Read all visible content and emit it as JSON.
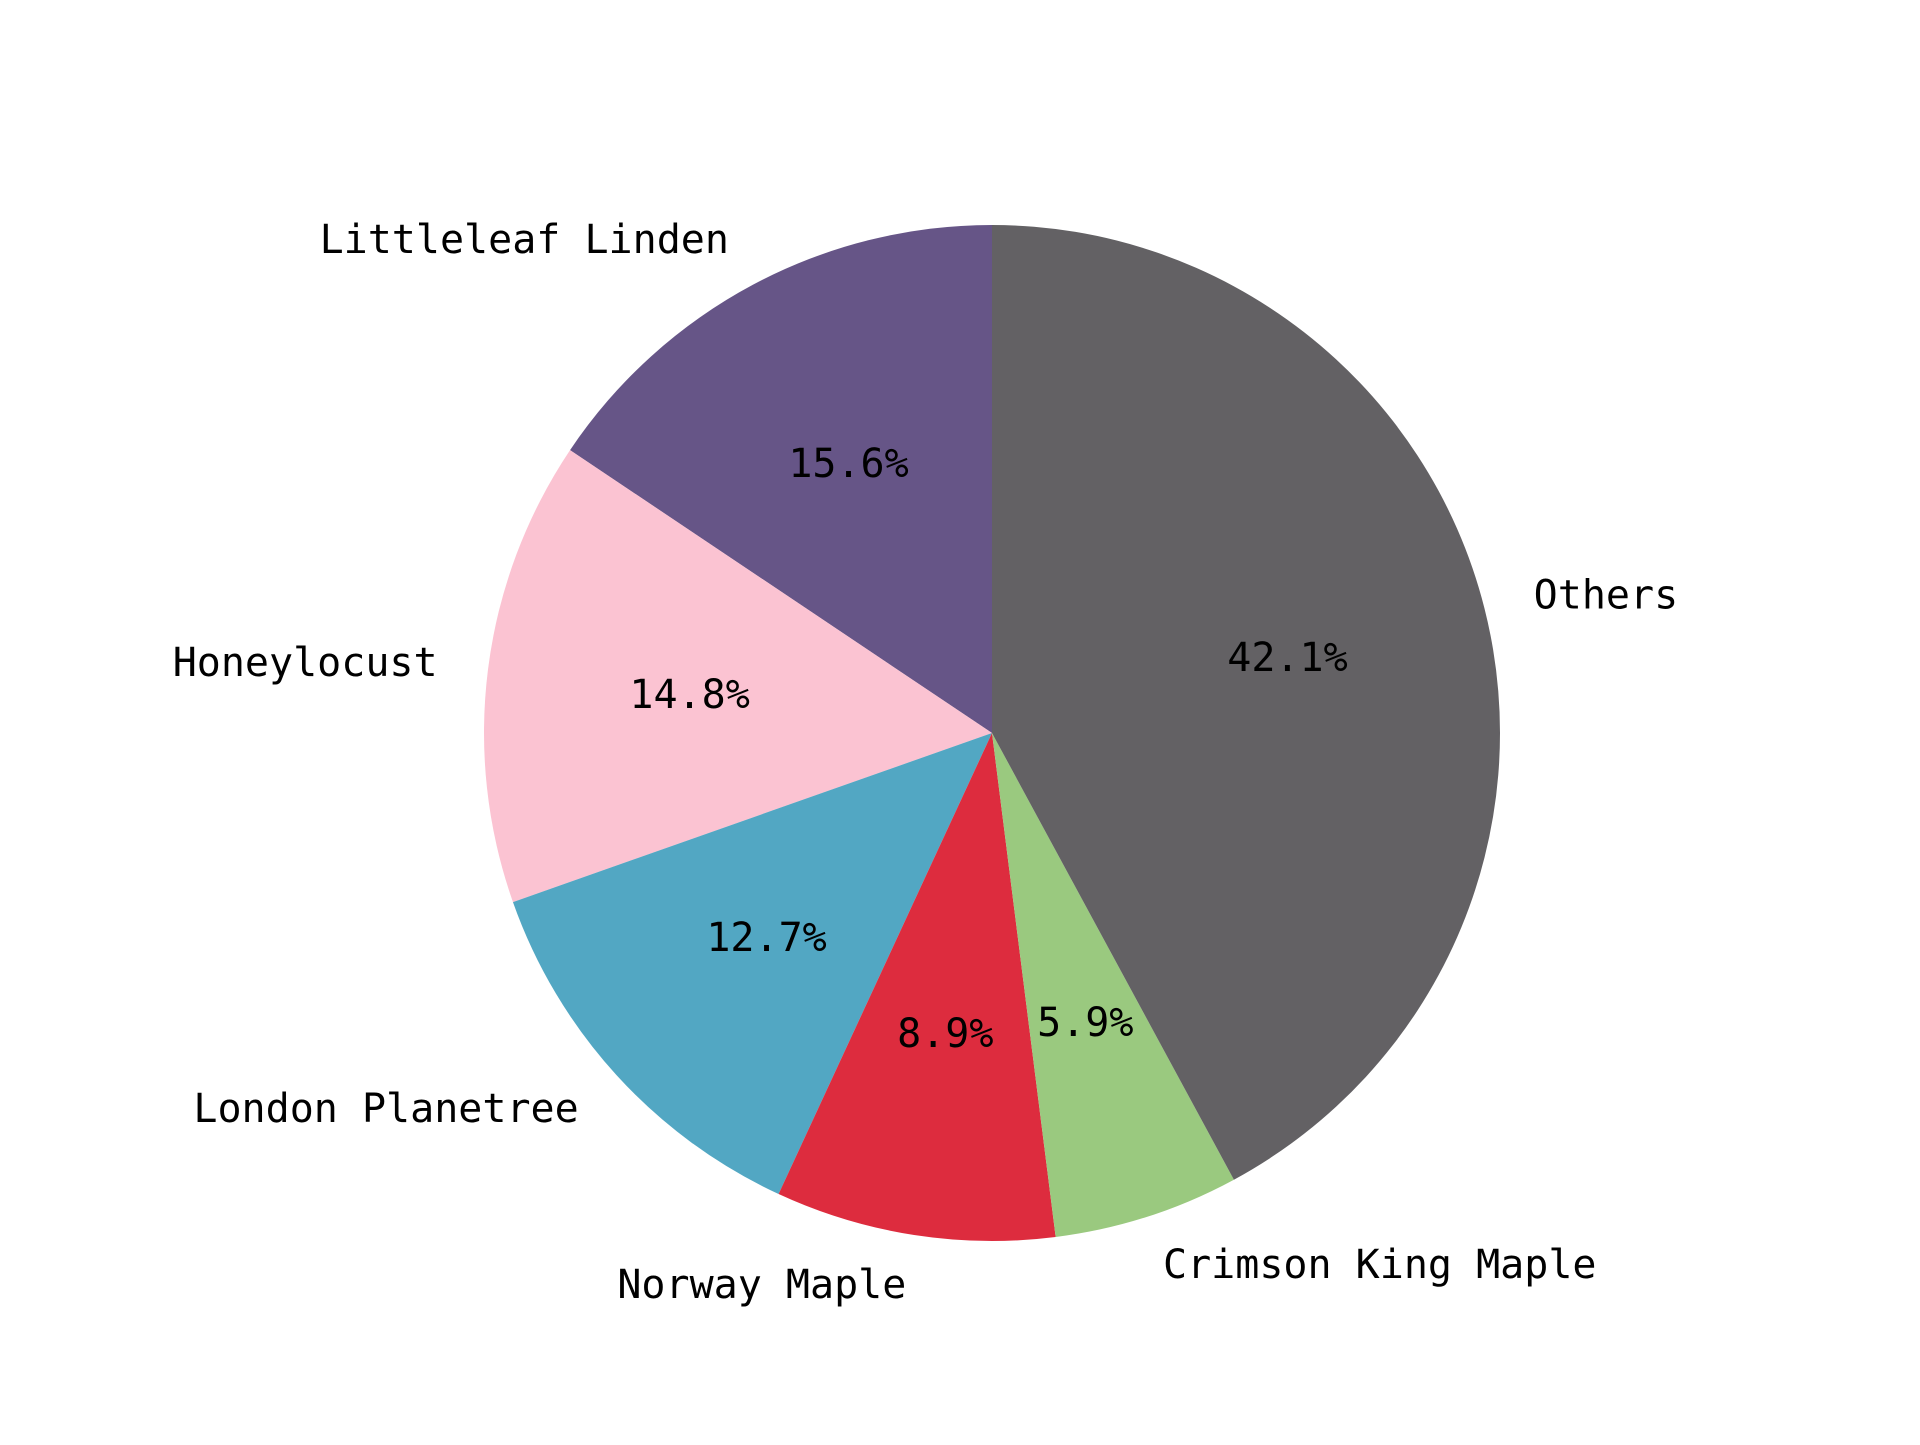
{
  "chart_data": {
    "type": "pie",
    "title": "",
    "legend": "none",
    "start_angle_deg": 90,
    "direction": "counterclockwise",
    "slices": [
      {
        "label": "Littleleaf Linden",
        "value": 15.6,
        "pct_label": "15.6%",
        "color": "#665587"
      },
      {
        "label": "Honeylocust",
        "value": 14.8,
        "pct_label": "14.8%",
        "color": "#fbc3d2"
      },
      {
        "label": "London Planetree",
        "value": 12.7,
        "pct_label": "12.7%",
        "color": "#52a7c3"
      },
      {
        "label": "Norway Maple",
        "value": 8.9,
        "pct_label": "8.9%",
        "color": "#dd2c3e"
      },
      {
        "label": "Crimson King Maple",
        "value": 5.9,
        "pct_label": "5.9%",
        "color": "#9ac97f"
      },
      {
        "label": "Others",
        "value": 42.1,
        "pct_label": "42.1%",
        "color": "#636164"
      }
    ]
  }
}
